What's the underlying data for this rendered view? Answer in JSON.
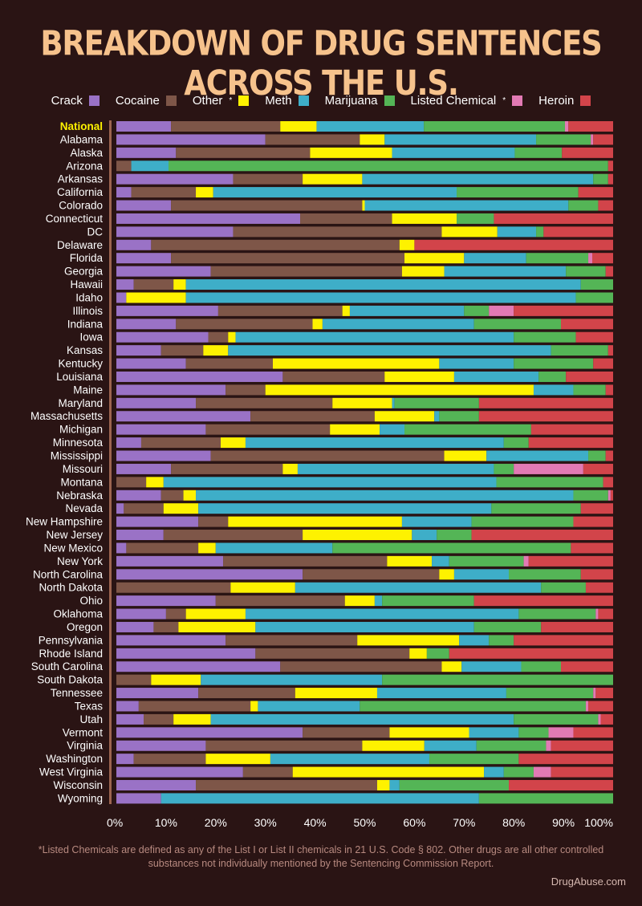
{
  "title": "BREAKDOWN OF DRUG SENTENCES ACROSS THE U.S.",
  "footnote": "*Listed Chemicals are defined as any of the List I or List II chemicals in 21 U.S. Code § 802. Other drugs are all other controlled substances not individually mentioned by the Sentencing Commission Report.",
  "source": "DrugAbuse.com",
  "legend": [
    {
      "label": "Crack",
      "sup": "",
      "color": "#9a72c6"
    },
    {
      "label": "Cocaine",
      "sup": "",
      "color": "#7e5648"
    },
    {
      "label": "Other",
      "sup": "*",
      "color": "#fef200"
    },
    {
      "label": "Meth",
      "sup": "",
      "color": "#3eaec8"
    },
    {
      "label": "Marijuana",
      "sup": "",
      "color": "#54b556"
    },
    {
      "label": "Listed Chemical",
      "sup": "*",
      "color": "#e27ab4"
    },
    {
      "label": "Heroin",
      "sup": "",
      "color": "#d2444a"
    }
  ],
  "chart_data": {
    "type": "bar",
    "orientation": "horizontal",
    "stacked": true,
    "xlim": [
      0,
      100
    ],
    "x_ticks": [
      "0%",
      "10%",
      "20%",
      "30%",
      "40%",
      "50%",
      "60%",
      "70%",
      "80%",
      "90%",
      "100%"
    ],
    "highlight_category": "National",
    "highlight_color": "#fef200",
    "series_order": [
      "Crack",
      "Cocaine",
      "Other",
      "Meth",
      "Marijuana",
      "Listed Chemical",
      "Heroin"
    ],
    "colors": [
      "#9a72c6",
      "#7e5648",
      "#fef200",
      "#3eaec8",
      "#54b556",
      "#e27ab4",
      "#d2444a"
    ],
    "rows": [
      {
        "state": "National",
        "values": [
          11.0,
          22.0,
          7.3,
          21.6,
          28.4,
          0.7,
          9.0
        ]
      },
      {
        "state": "Alabama",
        "values": [
          30.0,
          19.0,
          5.0,
          30.5,
          11.0,
          0.5,
          4.0
        ]
      },
      {
        "state": "Alaska",
        "values": [
          12.0,
          27.0,
          16.5,
          24.7,
          9.5,
          0.0,
          10.3
        ]
      },
      {
        "state": "Arizona",
        "values": [
          0.0,
          3.0,
          0.0,
          7.5,
          88.5,
          0.0,
          1.0
        ]
      },
      {
        "state": "Arkansas",
        "values": [
          23.5,
          14.0,
          12.0,
          46.5,
          3.0,
          0.0,
          1.0
        ]
      },
      {
        "state": "California",
        "values": [
          3.0,
          13.0,
          3.5,
          49.0,
          24.5,
          0.0,
          7.0
        ]
      },
      {
        "state": "Colorado",
        "values": [
          11.0,
          38.5,
          0.5,
          41.0,
          6.0,
          0.0,
          3.0
        ]
      },
      {
        "state": "Connecticut",
        "values": [
          37.0,
          18.5,
          13.0,
          0.0,
          7.5,
          0.0,
          24.0
        ]
      },
      {
        "state": "DC",
        "values": [
          23.5,
          42.0,
          11.2,
          7.8,
          1.5,
          0.0,
          14.0
        ]
      },
      {
        "state": "Delaware",
        "values": [
          7.0,
          50.0,
          3.0,
          0.0,
          0.0,
          0.0,
          40.0
        ]
      },
      {
        "state": "Florida",
        "values": [
          11.0,
          47.0,
          12.0,
          12.5,
          12.5,
          0.8,
          4.2
        ]
      },
      {
        "state": "Georgia",
        "values": [
          19.0,
          38.5,
          8.5,
          24.5,
          8.0,
          0.0,
          1.5
        ]
      },
      {
        "state": "Hawaii",
        "values": [
          3.5,
          8.0,
          2.5,
          79.5,
          6.5,
          0.0,
          0.0
        ]
      },
      {
        "state": "Idaho",
        "values": [
          2.0,
          0.0,
          12.0,
          78.5,
          7.5,
          0.0,
          0.0
        ]
      },
      {
        "state": "Illinois",
        "values": [
          20.5,
          25.0,
          1.5,
          23.0,
          5.0,
          5.0,
          20.0
        ]
      },
      {
        "state": "Indiana",
        "values": [
          12.0,
          27.5,
          2.0,
          30.5,
          17.5,
          0.0,
          10.5
        ]
      },
      {
        "state": "Iowa",
        "values": [
          18.5,
          4.0,
          1.5,
          56.0,
          12.5,
          0.0,
          7.5
        ]
      },
      {
        "state": "Kansas",
        "values": [
          9.0,
          8.5,
          5.0,
          65.0,
          11.5,
          0.0,
          1.0
        ]
      },
      {
        "state": "Kentucky",
        "values": [
          14.0,
          17.5,
          33.5,
          15.0,
          16.0,
          0.0,
          4.0
        ]
      },
      {
        "state": "Louisiana",
        "values": [
          33.5,
          20.5,
          14.0,
          17.0,
          5.5,
          0.0,
          9.5
        ]
      },
      {
        "state": "Maine",
        "values": [
          22.0,
          8.0,
          54.0,
          8.0,
          6.5,
          0.0,
          1.5
        ]
      },
      {
        "state": "Maryland",
        "values": [
          16.0,
          27.5,
          12.0,
          0.5,
          17.0,
          0.0,
          27.0
        ]
      },
      {
        "state": "Massachusetts",
        "values": [
          27.0,
          25.0,
          12.0,
          1.0,
          8.0,
          0.0,
          27.0
        ]
      },
      {
        "state": "Michigan",
        "values": [
          18.0,
          25.0,
          10.0,
          5.0,
          25.5,
          0.0,
          16.5
        ]
      },
      {
        "state": "Minnesota",
        "values": [
          5.0,
          16.0,
          5.0,
          52.0,
          5.0,
          0.0,
          17.0
        ]
      },
      {
        "state": "Mississippi",
        "values": [
          19.0,
          47.0,
          8.5,
          20.5,
          3.5,
          0.0,
          1.5
        ]
      },
      {
        "state": "Missouri",
        "values": [
          11.0,
          22.5,
          3.0,
          39.5,
          4.0,
          14.0,
          6.0
        ]
      },
      {
        "state": "Montana",
        "values": [
          0.0,
          6.0,
          3.5,
          67.0,
          21.5,
          0.0,
          2.0
        ]
      },
      {
        "state": "Nebraska",
        "values": [
          9.0,
          4.5,
          2.5,
          76.0,
          7.0,
          0.5,
          0.5
        ]
      },
      {
        "state": "Nevada",
        "values": [
          1.5,
          8.0,
          7.0,
          59.0,
          18.0,
          0.0,
          6.5
        ]
      },
      {
        "state": "New Hampshire",
        "values": [
          16.5,
          6.0,
          35.0,
          14.0,
          20.5,
          0.0,
          8.0
        ]
      },
      {
        "state": "New Jersey",
        "values": [
          9.5,
          28.0,
          22.0,
          5.0,
          7.0,
          0.0,
          28.5
        ]
      },
      {
        "state": "New Mexico",
        "values": [
          2.0,
          14.5,
          3.5,
          23.5,
          48.0,
          0.0,
          8.5
        ]
      },
      {
        "state": "New York",
        "values": [
          21.5,
          33.0,
          9.0,
          3.5,
          15.0,
          1.0,
          17.0
        ]
      },
      {
        "state": "North Carolina",
        "values": [
          37.5,
          27.5,
          3.0,
          11.0,
          14.5,
          0.0,
          6.5
        ]
      },
      {
        "state": "North Dakota",
        "values": [
          0.0,
          23.0,
          13.0,
          49.5,
          9.0,
          0.0,
          5.5
        ]
      },
      {
        "state": "Ohio",
        "values": [
          20.0,
          26.0,
          6.0,
          1.5,
          18.5,
          0.0,
          28.0
        ]
      },
      {
        "state": "Oklahoma",
        "values": [
          10.0,
          4.0,
          12.0,
          55.0,
          15.5,
          0.5,
          3.0
        ]
      },
      {
        "state": "Oregon",
        "values": [
          7.5,
          5.0,
          15.5,
          44.0,
          13.5,
          0.0,
          14.5
        ]
      },
      {
        "state": "Pennsylvania",
        "values": [
          22.0,
          26.5,
          20.5,
          6.0,
          5.0,
          0.0,
          20.0
        ]
      },
      {
        "state": "Rhode Island",
        "values": [
          28.0,
          31.0,
          3.5,
          0.0,
          4.5,
          0.0,
          33.0
        ]
      },
      {
        "state": "South Carolina",
        "values": [
          33.0,
          32.5,
          4.0,
          12.0,
          8.0,
          0.0,
          10.5
        ]
      },
      {
        "state": "South Dakota",
        "values": [
          0.0,
          7.0,
          10.0,
          36.5,
          46.5,
          0.0,
          0.0
        ]
      },
      {
        "state": "Tennessee",
        "values": [
          16.5,
          19.5,
          16.5,
          26.0,
          17.5,
          0.5,
          3.5
        ]
      },
      {
        "state": "Texas",
        "values": [
          4.5,
          22.5,
          1.5,
          20.5,
          45.5,
          0.5,
          5.0
        ]
      },
      {
        "state": "Utah",
        "values": [
          5.5,
          6.0,
          7.5,
          61.0,
          17.0,
          0.5,
          2.5
        ]
      },
      {
        "state": "Vermont",
        "values": [
          37.5,
          17.5,
          16.0,
          10.0,
          6.0,
          5.0,
          8.0
        ]
      },
      {
        "state": "Virginia",
        "values": [
          18.0,
          31.5,
          12.5,
          10.5,
          14.0,
          1.0,
          12.5
        ]
      },
      {
        "state": "Washington",
        "values": [
          3.5,
          14.5,
          13.0,
          32.0,
          18.0,
          0.0,
          19.0
        ]
      },
      {
        "state": "West Virginia",
        "values": [
          25.5,
          10.0,
          38.5,
          4.0,
          6.0,
          3.5,
          12.5
        ]
      },
      {
        "state": "Wisconsin",
        "values": [
          16.0,
          36.5,
          2.5,
          2.0,
          22.0,
          0.0,
          21.0
        ]
      },
      {
        "state": "Wyoming",
        "values": [
          9.0,
          0.0,
          0.0,
          64.0,
          27.0,
          0.0,
          0.0
        ]
      }
    ]
  }
}
